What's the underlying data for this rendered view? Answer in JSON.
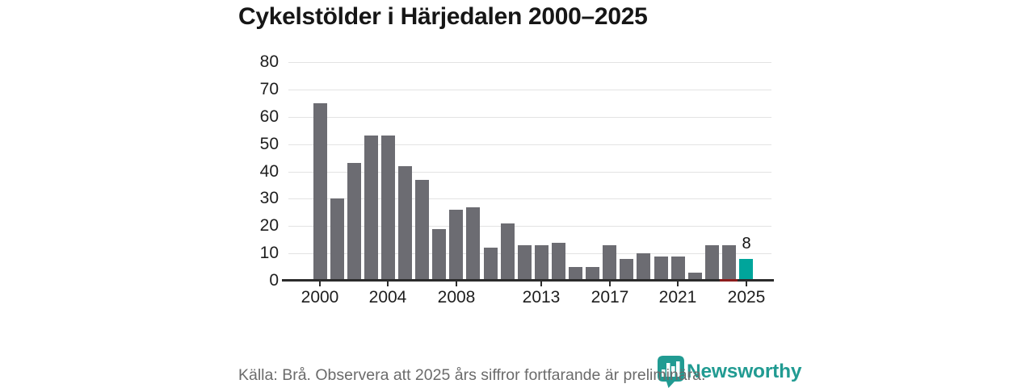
{
  "title": "Cykelstölder i Härjedalen 2000–2025",
  "footer": {
    "source_note": "Källa: Brå. Observera att 2025 års siffror fortfarande är preliminära.",
    "brand": "Newsworthy"
  },
  "colors": {
    "bar": "#6c6c72",
    "highlight": "#00a59b",
    "brand": "#219b92",
    "grid": "#e3e3e3",
    "axis": "#2b2b2b",
    "text": "#1e1e1e",
    "muted": "#6b6b6b",
    "preliminary_mark": "#8c1c1c"
  },
  "chart_data": {
    "type": "bar",
    "title": "Cykelstölder i Härjedalen 2000–2025",
    "x": [
      2000,
      2001,
      2002,
      2003,
      2004,
      2005,
      2006,
      2007,
      2008,
      2009,
      2010,
      2011,
      2012,
      2013,
      2014,
      2015,
      2016,
      2017,
      2018,
      2019,
      2020,
      2021,
      2022,
      2023,
      2024,
      2025
    ],
    "values": [
      65,
      30,
      43,
      53,
      53,
      42,
      37,
      19,
      26,
      27,
      12,
      21,
      13,
      13,
      14,
      5,
      5,
      13,
      8,
      10,
      9,
      9,
      3,
      13,
      13,
      8
    ],
    "highlight_year": 2025,
    "highlight_label": "8",
    "y_ticks": [
      0,
      10,
      20,
      30,
      40,
      50,
      60,
      70,
      80
    ],
    "x_tick_years": [
      2000,
      2004,
      2008,
      2013,
      2017,
      2021,
      2025
    ],
    "x_tick_labels": [
      "2000",
      "2004",
      "2008",
      "2013",
      "2017",
      "2021",
      "2025"
    ],
    "ylim": [
      0,
      80
    ],
    "grid": true,
    "legend": "none",
    "xlabel": "",
    "ylabel": ""
  }
}
